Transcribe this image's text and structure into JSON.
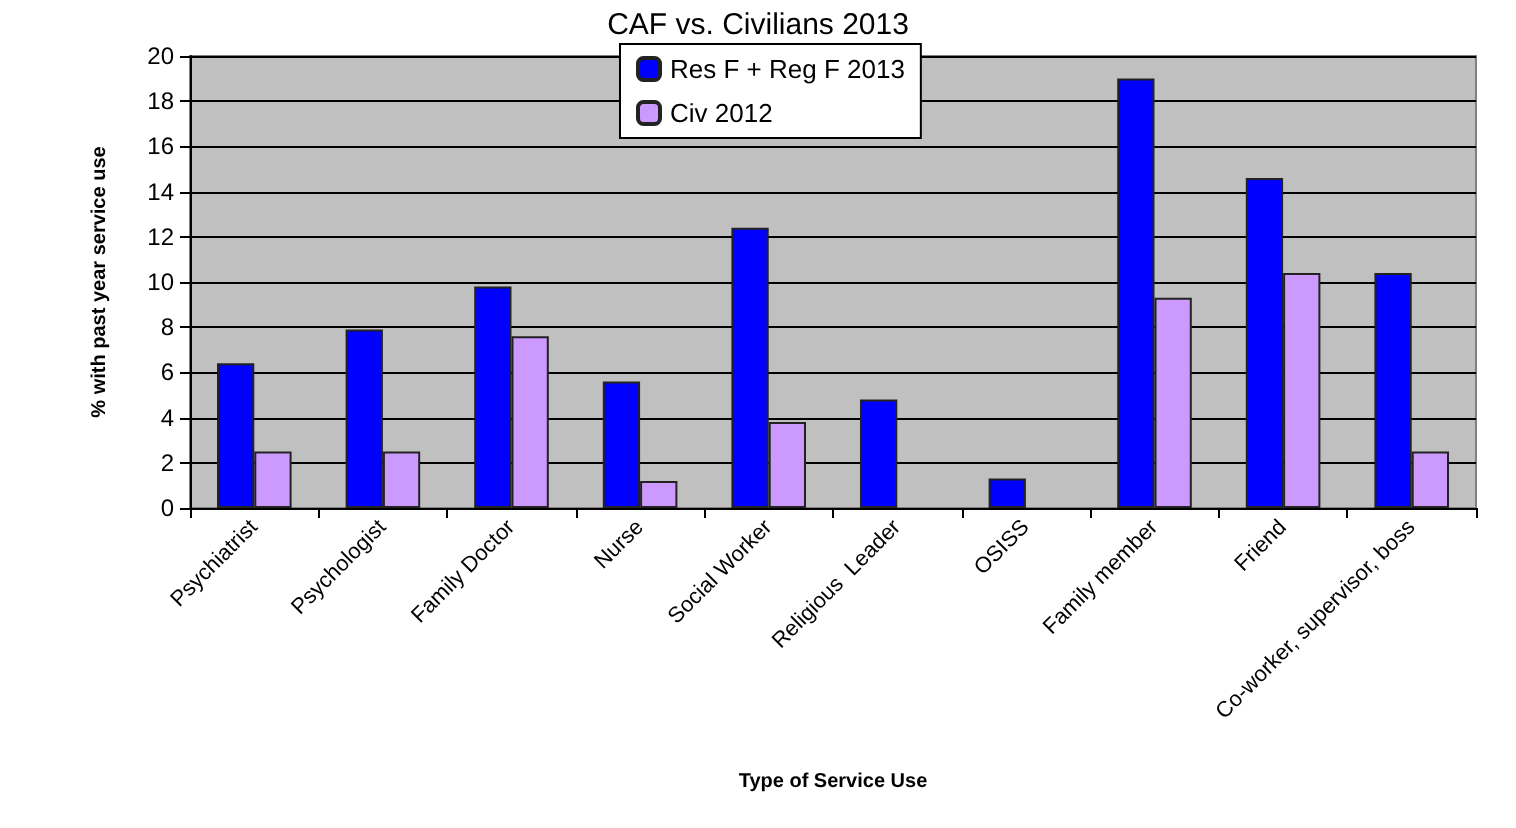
{
  "chart_data": {
    "type": "bar",
    "title": "CAF vs. Civilians 2013",
    "xlabel": "Type of Service Use",
    "ylabel": "% with past year service use",
    "categories": [
      "Psychiatrist",
      "Psychologist",
      "Family Doctor",
      "Nurse",
      "Social Worker",
      "Religious  Leader",
      "OSISS",
      "Family member",
      "Friend",
      "Co-worker, supervisor, boss"
    ],
    "series": [
      {
        "name": "Res F + Reg F 2013",
        "color": "#0000ff",
        "values": [
          6.4,
          7.9,
          9.8,
          5.6,
          12.4,
          4.8,
          1.3,
          19.0,
          14.6,
          10.4
        ]
      },
      {
        "name": "Civ 2012",
        "color": "#cc99ff",
        "values": [
          2.5,
          2.5,
          7.6,
          1.2,
          3.8,
          null,
          null,
          9.3,
          10.4,
          2.5
        ]
      }
    ],
    "ylim": [
      0,
      20
    ],
    "yticks": [
      0,
      2,
      4,
      6,
      8,
      10,
      12,
      14,
      16,
      18,
      20
    ],
    "grid": "y",
    "legend": "top"
  }
}
